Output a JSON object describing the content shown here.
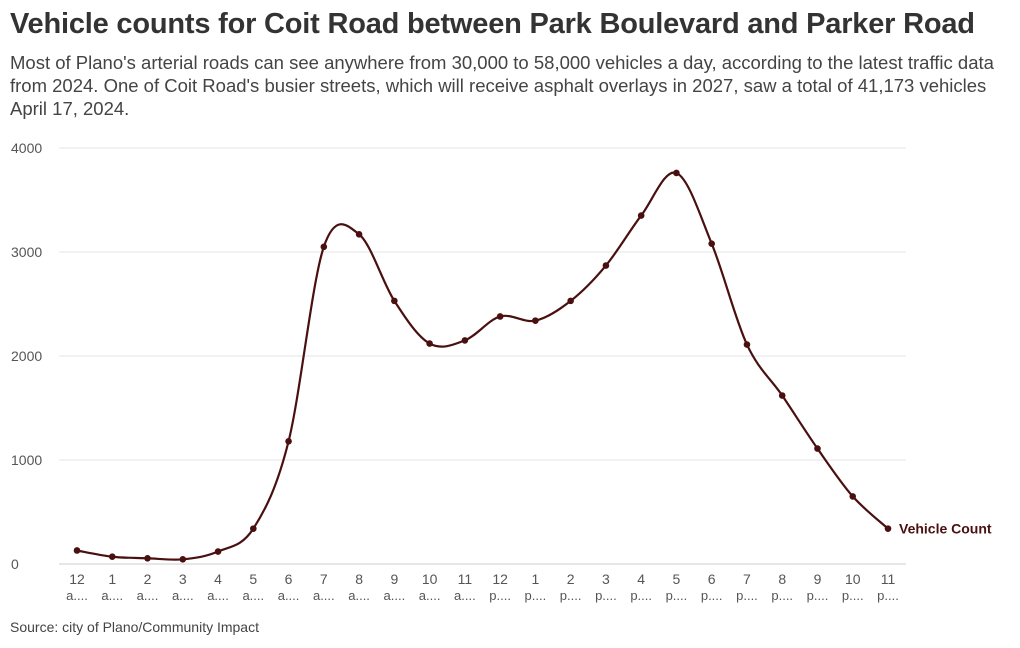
{
  "title": "Vehicle counts for Coit Road between Park Boulevard and Parker Road",
  "subtitle": "Most of Plano's arterial roads can see anywhere from 30,000 to 58,000 vehicles a day, according to the latest traffic data from 2024. One of Coit Road's busier streets, which will receive asphalt overlays in 2027, saw a total of 41,173 vehicles April 17, 2024.",
  "source": "Source: city of Plano/Community Impact",
  "colors": {
    "line": "#4a1010",
    "grid": "#e6e6e6",
    "text": "#333333"
  },
  "chart_data": {
    "type": "line",
    "title": "Vehicle counts for Coit Road between Park Boulevard and Parker Road",
    "xlabel": "",
    "ylabel": "",
    "ylim": [
      0,
      4000
    ],
    "yticks": [
      "0",
      "1000",
      "2000",
      "3000",
      "4000"
    ],
    "grid": true,
    "categories": [
      {
        "hour": "12",
        "period": "a...."
      },
      {
        "hour": "1",
        "period": "a...."
      },
      {
        "hour": "2",
        "period": "a...."
      },
      {
        "hour": "3",
        "period": "a...."
      },
      {
        "hour": "4",
        "period": "a...."
      },
      {
        "hour": "5",
        "period": "a...."
      },
      {
        "hour": "6",
        "period": "a...."
      },
      {
        "hour": "7",
        "period": "a...."
      },
      {
        "hour": "8",
        "period": "a...."
      },
      {
        "hour": "9",
        "period": "a...."
      },
      {
        "hour": "10",
        "period": "a...."
      },
      {
        "hour": "11",
        "period": "a...."
      },
      {
        "hour": "12",
        "period": "p...."
      },
      {
        "hour": "1",
        "period": "p...."
      },
      {
        "hour": "2",
        "period": "p...."
      },
      {
        "hour": "3",
        "period": "p...."
      },
      {
        "hour": "4",
        "period": "p...."
      },
      {
        "hour": "5",
        "period": "p...."
      },
      {
        "hour": "6",
        "period": "p...."
      },
      {
        "hour": "7",
        "period": "p...."
      },
      {
        "hour": "8",
        "period": "p...."
      },
      {
        "hour": "9",
        "period": "p...."
      },
      {
        "hour": "10",
        "period": "p...."
      },
      {
        "hour": "11",
        "period": "p...."
      }
    ],
    "series": [
      {
        "name": "Vehicle Count",
        "values": [
          130,
          70,
          55,
          45,
          120,
          340,
          1180,
          3050,
          3170,
          2530,
          2120,
          2150,
          2380,
          2340,
          2530,
          2870,
          3350,
          3760,
          3080,
          2110,
          1620,
          1110,
          650,
          340
        ]
      }
    ]
  }
}
